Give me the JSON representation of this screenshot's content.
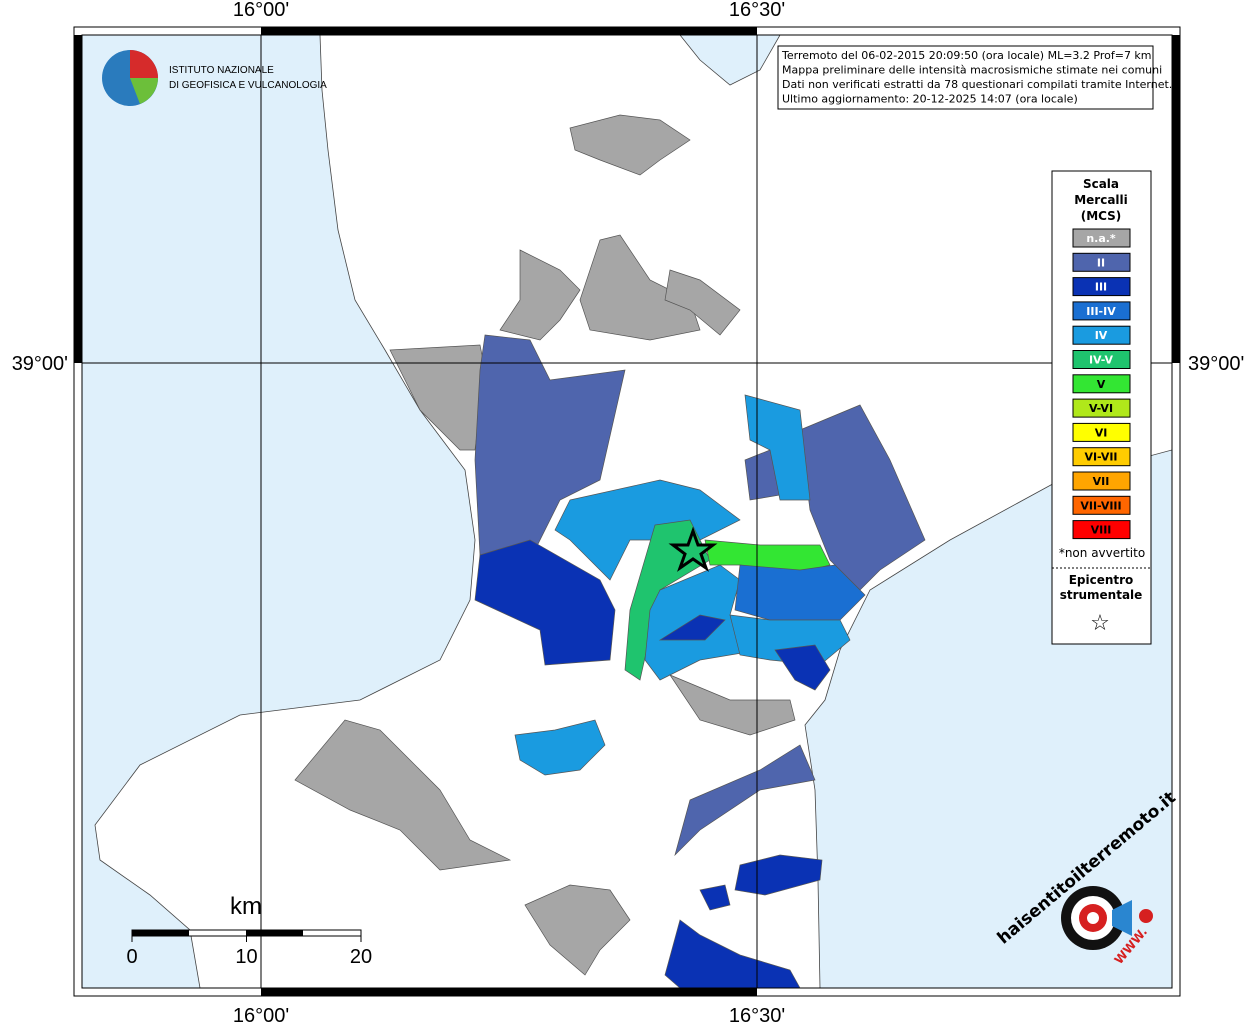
{
  "header": {
    "institute": [
      "ISTITUTO NAZIONALE",
      "DI GEOFISICA E VULCANOLOGIA"
    ]
  },
  "info": [
    "Terremoto del 06-02-2015 20:09:50 (ora locale) ML=3.2 Prof=7 km",
    "Mappa preliminare delle intensità macrosismiche stimate nei comuni",
    "Dati non verificati estratti da 78 questionari compilati tramite Internet.",
    "Ultimo aggiornamento: 20-12-2025 14:07 (ora locale)"
  ],
  "axes": {
    "lon": [
      "16°00'",
      "16°30'"
    ],
    "lat": [
      "39°00'"
    ]
  },
  "legend": {
    "title": [
      "Scala",
      "Mercalli",
      "(MCS)"
    ],
    "items": [
      {
        "label": "n.a.*",
        "color": "#a6a6a6"
      },
      {
        "label": "II",
        "color": "#4f65ad"
      },
      {
        "label": "III",
        "color": "#0a32b4"
      },
      {
        "label": "III-IV",
        "color": "#1a6fd2"
      },
      {
        "label": "IV",
        "color": "#1a9be0"
      },
      {
        "label": "IV-V",
        "color": "#1fc46e"
      },
      {
        "label": "V",
        "color": "#33e633"
      },
      {
        "label": "V-VI",
        "color": "#b0e81a"
      },
      {
        "label": "VI",
        "color": "#ffff00"
      },
      {
        "label": "VI-VII",
        "color": "#ffcc00"
      },
      {
        "label": "VII",
        "color": "#ffa500"
      },
      {
        "label": "VII-VIII",
        "color": "#ff6600"
      },
      {
        "label": "VIII",
        "color": "#ff0000"
      }
    ],
    "note": "*non avvertito",
    "epicentre": [
      "Epicentro",
      "strumentale"
    ],
    "star": "☆"
  },
  "scale": {
    "unit": "km",
    "ticks": [
      0,
      10,
      20
    ]
  },
  "logo": {
    "site": "haisentitoilterremoto.it",
    "www": "WWW."
  }
}
